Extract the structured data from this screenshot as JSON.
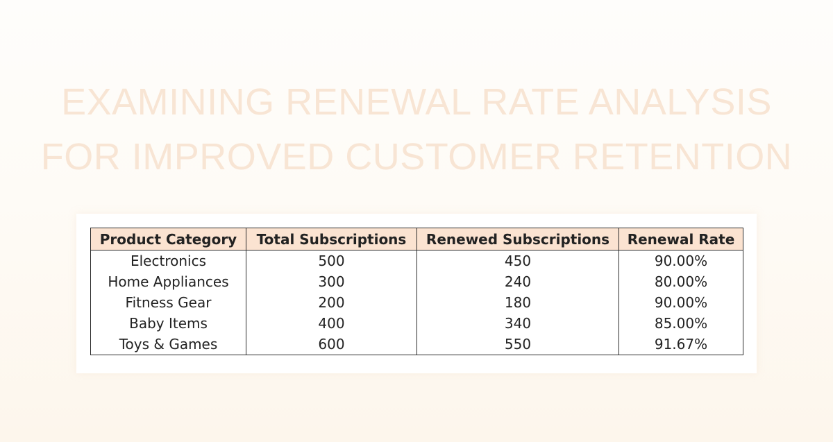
{
  "title": {
    "line1": "EXAMINING RENEWAL RATE ANALYSIS",
    "line2": "FOR IMPROVED CUSTOMER RETENTION"
  },
  "colors": {
    "title_text": "#f8e5d4",
    "header_fill": "#fbe3d1",
    "border": "#2a2a2a"
  },
  "table": {
    "headers": [
      "Product Category",
      "Total Subscriptions",
      "Renewed Subscriptions",
      "Renewal Rate"
    ],
    "rows": [
      [
        "Electronics",
        "500",
        "450",
        "90.00%"
      ],
      [
        "Home Appliances",
        "300",
        "240",
        "80.00%"
      ],
      [
        "Fitness Gear",
        "200",
        "180",
        "90.00%"
      ],
      [
        "Baby Items",
        "400",
        "340",
        "85.00%"
      ],
      [
        "Toys & Games",
        "600",
        "550",
        "91.67%"
      ]
    ]
  }
}
